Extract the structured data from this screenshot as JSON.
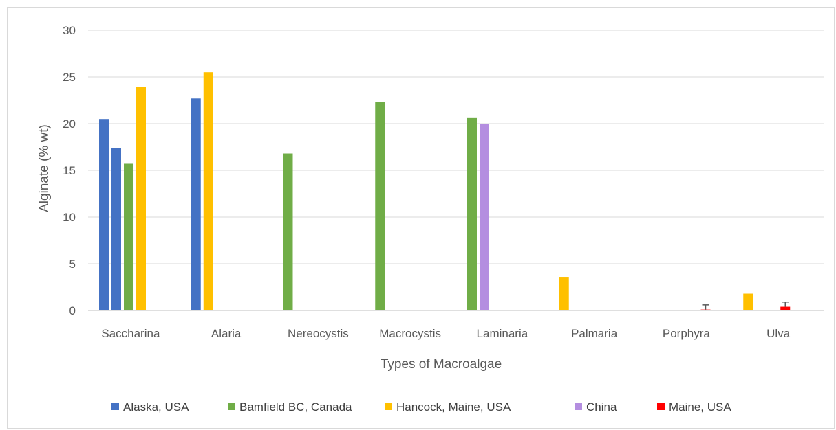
{
  "chart_data": {
    "type": "bar",
    "title": "",
    "xlabel": "Types of Macroalgae",
    "ylabel": "Alginate  (% wt)",
    "ylim": [
      0,
      30
    ],
    "yticks": [
      "0",
      "5",
      "10",
      "15",
      "20",
      "25",
      "30"
    ],
    "grid": true,
    "legend_position": "bottom",
    "categories": [
      {
        "name": "Saccharina",
        "bars": [
          {
            "series": "Alaska, USA",
            "value": 20.5
          },
          {
            "series": "Alaska, USA",
            "value": 17.4
          },
          {
            "series": "Bamfield BC, Canada",
            "value": 15.7
          },
          {
            "series": "Hancock, Maine, USA",
            "value": 23.9
          }
        ]
      },
      {
        "name": "Alaria",
        "bars": [
          {
            "series": "Alaska, USA",
            "value": 22.7
          },
          {
            "series": "Hancock, Maine, USA",
            "value": 25.5
          }
        ]
      },
      {
        "name": "Nereocystis",
        "bars": [
          {
            "series": "Bamfield BC, Canada",
            "value": 16.8
          }
        ]
      },
      {
        "name": "Macrocystis",
        "bars": [
          {
            "series": "Bamfield BC, Canada",
            "value": 22.3
          }
        ]
      },
      {
        "name": "Laminaria",
        "bars": [
          {
            "series": "Bamfield BC, Canada",
            "value": 20.6
          },
          {
            "series": "China",
            "value": 20.0
          }
        ]
      },
      {
        "name": "Palmaria",
        "bars": [
          {
            "series": "Hancock, Maine, USA",
            "value": 3.6
          }
        ]
      },
      {
        "name": "Porphyra",
        "bars": [
          {
            "series": "Maine, USA",
            "value": 0.1,
            "error": 0.5
          }
        ]
      },
      {
        "name": "Ulva",
        "bars": [
          {
            "series": "Hancock, Maine, USA",
            "value": 1.8
          },
          {
            "series": "Maine, USA",
            "value": 0.4,
            "error": 0.5
          }
        ]
      }
    ],
    "series": [
      {
        "name": "Alaska, USA",
        "color": "#4472c4"
      },
      {
        "name": "Bamfield BC, Canada",
        "color": "#70ad47"
      },
      {
        "name": "Hancock, Maine, USA",
        "color": "#ffc000"
      },
      {
        "name": "China",
        "color": "#b48ee0"
      },
      {
        "name": "Maine, USA",
        "color": "#ff0000"
      }
    ]
  }
}
